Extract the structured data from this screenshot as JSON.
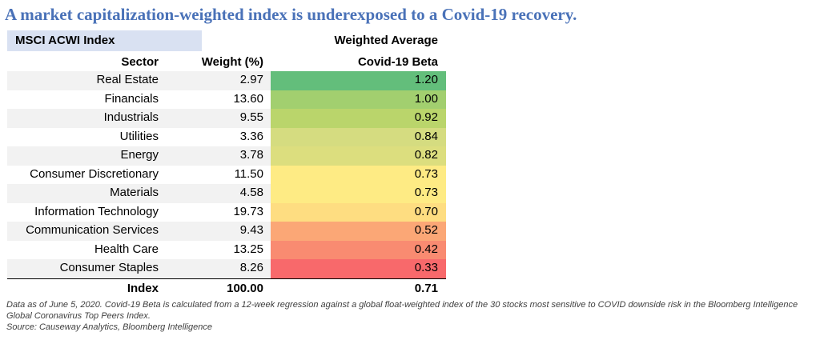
{
  "title": "A market capitalization-weighted index is underexposed to a Covid-19 recovery.",
  "table_tag": "MSCI ACWI Index",
  "header": {
    "sector": "Sector",
    "weight": "Weight (%)",
    "beta_line1": "Weighted Average",
    "beta_line2": "Covid-19 Beta"
  },
  "chart_data": {
    "type": "table",
    "columns": [
      "Sector",
      "Weight (%)",
      "Weighted Average Covid-19 Beta"
    ],
    "rows": [
      {
        "sector": "Real Estate",
        "weight": "2.97",
        "beta": "1.20",
        "color": "#63be7b"
      },
      {
        "sector": "Financials",
        "weight": "13.60",
        "beta": "1.00",
        "color": "#a2cf6f"
      },
      {
        "sector": "Industrials",
        "weight": "9.55",
        "beta": "0.92",
        "color": "#bad56b"
      },
      {
        "sector": "Utilities",
        "weight": "3.36",
        "beta": "0.84",
        "color": "#d5dc80"
      },
      {
        "sector": "Energy",
        "weight": "3.78",
        "beta": "0.82",
        "color": "#dcde7e"
      },
      {
        "sector": "Consumer Discretionary",
        "weight": "11.50",
        "beta": "0.73",
        "color": "#feeb84"
      },
      {
        "sector": "Materials",
        "weight": "4.58",
        "beta": "0.73",
        "color": "#feeb84"
      },
      {
        "sector": "Information Technology",
        "weight": "19.73",
        "beta": "0.70",
        "color": "#fedd81"
      },
      {
        "sector": "Communication Services",
        "weight": "9.43",
        "beta": "0.52",
        "color": "#fba776"
      },
      {
        "sector": "Health Care",
        "weight": "13.25",
        "beta": "0.42",
        "color": "#f98b71"
      },
      {
        "sector": "Consumer Staples",
        "weight": "8.26",
        "beta": "0.33",
        "color": "#f8696b"
      }
    ],
    "total": {
      "label": "Index",
      "weight": "100.00",
      "beta": "0.71"
    }
  },
  "notes": {
    "line1": "Data as of June 5, 2020. Covid-19 Beta is calculated from a 12-week regression against a global float-weighted index of the 30 stocks most sensitive to COVID downside risk in the Bloomberg Intelligence Global Coronavirus Top Peers Index.",
    "source": "Source: Causeway Analytics, Bloomberg Intelligence"
  }
}
